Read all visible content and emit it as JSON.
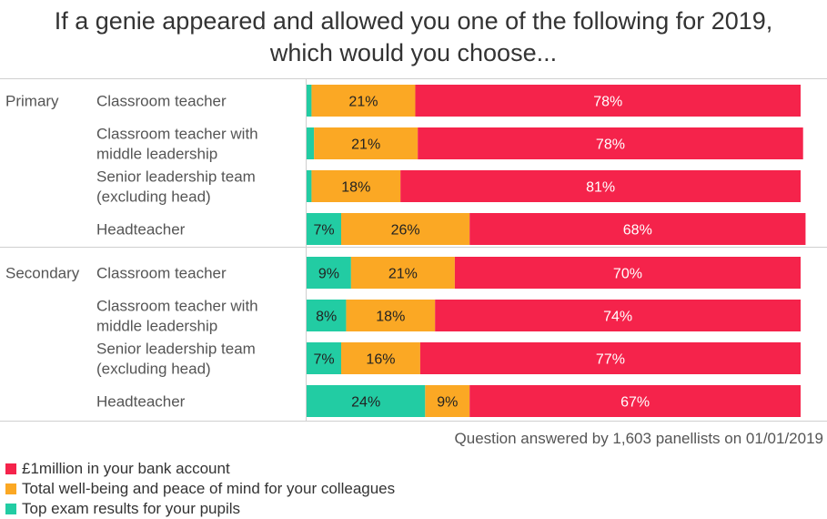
{
  "chart_data": {
    "type": "bar",
    "stacked": true,
    "orientation": "horizontal",
    "title": "If a genie appeared and allowed you one of the following for 2019, which would you choose...",
    "title_lines": [
      "If a genie appeared and allowed you one of the following for 2019,",
      "which would you choose..."
    ],
    "xlim": [
      0,
      100
    ],
    "groups": [
      {
        "name": "Primary",
        "rows": [
          {
            "label": [
              "Classroom teacher"
            ],
            "exam": 1,
            "wellbeing": 21,
            "money": 78,
            "labels": [
              "",
              "21%",
              "78%"
            ]
          },
          {
            "label": [
              "Classroom teacher with",
              "middle leadership"
            ],
            "exam": 1.5,
            "wellbeing": 21,
            "money": 78,
            "labels": [
              "",
              "21%",
              "78%"
            ]
          },
          {
            "label": [
              "Senior leadership team",
              "(excluding head)"
            ],
            "exam": 1,
            "wellbeing": 18,
            "money": 81,
            "labels": [
              "",
              "18%",
              "81%"
            ]
          },
          {
            "label": [
              "Headteacher"
            ],
            "exam": 7,
            "wellbeing": 26,
            "money": 68,
            "labels": [
              "7%",
              "26%",
              "68%"
            ]
          }
        ]
      },
      {
        "name": "Secondary",
        "rows": [
          {
            "label": [
              "Classroom teacher"
            ],
            "exam": 9,
            "wellbeing": 21,
            "money": 70,
            "labels": [
              "9%",
              "21%",
              "70%"
            ]
          },
          {
            "label": [
              "Classroom teacher with",
              "middle leadership"
            ],
            "exam": 8,
            "wellbeing": 18,
            "money": 74,
            "labels": [
              "8%",
              "18%",
              "74%"
            ]
          },
          {
            "label": [
              "Senior leadership team",
              "(excluding head)"
            ],
            "exam": 7,
            "wellbeing": 16,
            "money": 77,
            "labels": [
              "7%",
              "16%",
              "77%"
            ]
          },
          {
            "label": [
              "Headteacher"
            ],
            "exam": 24,
            "wellbeing": 9,
            "money": 67,
            "labels": [
              "24%",
              "9%",
              "67%"
            ]
          }
        ]
      }
    ],
    "series": [
      {
        "key": "money",
        "name": "£1million in your bank account",
        "color": "#f5234b"
      },
      {
        "key": "wellbeing",
        "name": "Total well-being and peace of mind for your colleagues",
        "color": "#fba824"
      },
      {
        "key": "exam",
        "name": "Top exam results for your pupils",
        "color": "#22cca3"
      }
    ],
    "stack_order": [
      "exam",
      "wellbeing",
      "money"
    ],
    "footnote": "Question answered by 1,603 panellists on 01/01/2019",
    "grid": false,
    "legend_position": "bottom-left"
  }
}
